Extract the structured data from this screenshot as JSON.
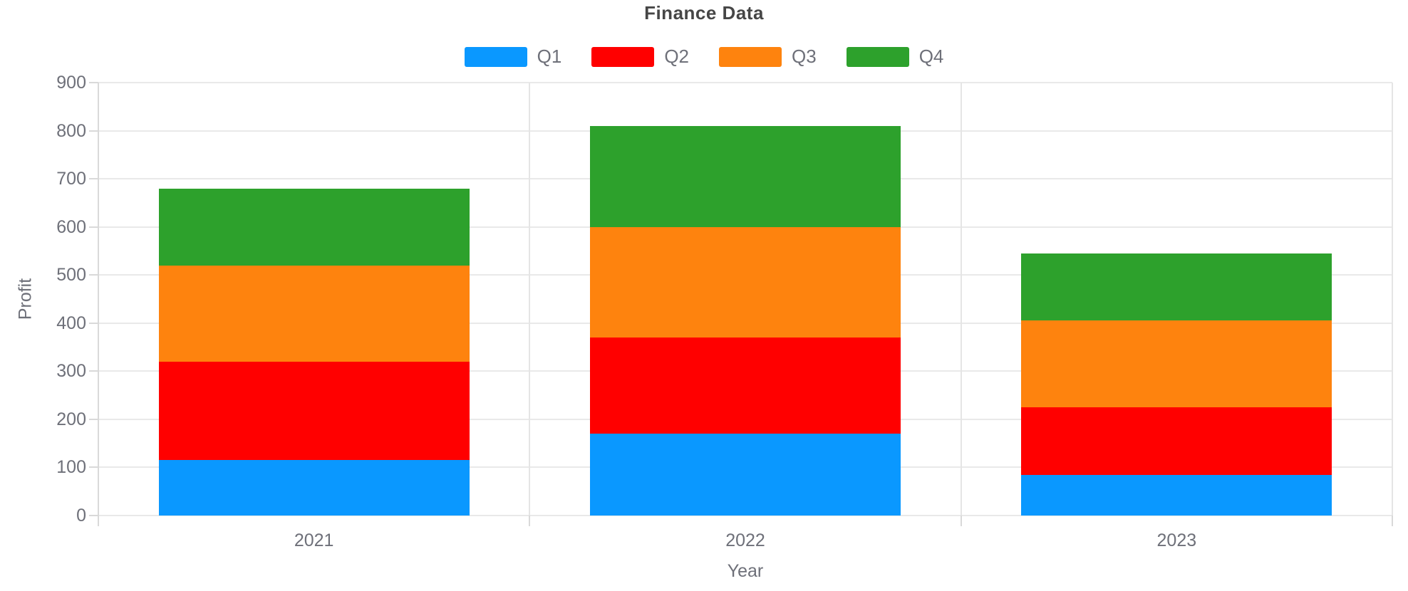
{
  "title": "Finance Data",
  "axes": {
    "y_name": "Profit",
    "x_name": "Year"
  },
  "legend": {
    "items": [
      {
        "label": "Q1",
        "color": "#0a98ff"
      },
      {
        "label": "Q2",
        "color": "#ff0000"
      },
      {
        "label": "Q3",
        "color": "#fe830e"
      },
      {
        "label": "Q4",
        "color": "#2da12c"
      }
    ]
  },
  "chart_data": {
    "type": "bar",
    "stacked": true,
    "title": "Finance Data",
    "xlabel": "Year",
    "ylabel": "Profit",
    "categories": [
      "2021",
      "2022",
      "2023"
    ],
    "series": [
      {
        "name": "Q1",
        "color": "#0a98ff",
        "values": [
          115,
          170,
          85
        ]
      },
      {
        "name": "Q2",
        "color": "#ff0000",
        "values": [
          205,
          200,
          140
        ]
      },
      {
        "name": "Q3",
        "color": "#fe830e",
        "values": [
          200,
          230,
          180
        ]
      },
      {
        "name": "Q4",
        "color": "#2da12c",
        "values": [
          160,
          210,
          140
        ]
      }
    ],
    "totals": [
      680,
      810,
      545
    ],
    "ylim": [
      0,
      900
    ],
    "yticks": [
      0,
      100,
      200,
      300,
      400,
      500,
      600,
      700,
      800,
      900
    ],
    "grid": true,
    "legend_position": "top"
  },
  "colors": {
    "title_text": "#464646",
    "axis_label_text": "#6e7079",
    "gridline": "#e9e9e9",
    "axis_line": "#d9d9d9",
    "background": "#ffffff"
  }
}
